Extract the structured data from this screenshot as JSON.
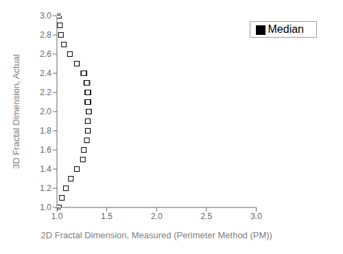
{
  "chart_data": {
    "type": "scatter",
    "x_label": "2D Fractal Dimension, Measured (Perimeter Method (PM))",
    "y_label": "3D Fractal Dimension, Actual",
    "x": [
      1.02,
      1.03,
      1.04,
      1.07,
      1.13,
      1.2,
      1.27,
      1.3,
      1.31,
      1.31,
      1.32,
      1.31,
      1.31,
      1.3,
      1.27,
      1.26,
      1.2,
      1.14,
      1.09,
      1.05,
      1.02
    ],
    "series": [
      {
        "name": "Median",
        "color": "#000000",
        "marker": "square",
        "values": [
          3.0,
          2.9,
          2.8,
          2.7,
          2.6,
          2.5,
          2.4,
          2.3,
          2.2,
          2.1,
          2.0,
          1.9,
          1.8,
          1.7,
          1.6,
          1.5,
          1.4,
          1.3,
          1.2,
          1.1,
          1.0
        ],
        "xerr_lo": [
          0.01,
          0.01,
          0.015,
          0.0,
          0.02,
          0.025,
          0.03,
          0.03,
          0.03,
          0.03,
          0.025,
          0.025,
          0.025,
          0.02,
          0.02,
          0.02,
          0.02,
          0.02,
          0.01,
          0.0,
          0.01
        ],
        "xerr_hi": [
          0.01,
          0.01,
          0.015,
          0.0,
          0.02,
          0.025,
          0.03,
          0.03,
          0.03,
          0.03,
          0.025,
          0.025,
          0.025,
          0.02,
          0.02,
          0.02,
          0.02,
          0.02,
          0.01,
          0.0,
          0.01
        ]
      }
    ],
    "xlim": [
      1.0,
      3.0
    ],
    "ylim": [
      1.0,
      3.0
    ],
    "xticks": [
      {
        "value": 1.0,
        "label": "1.0"
      },
      1.5,
      {
        "value": 2.0,
        "label": "2.0"
      },
      2.5,
      {
        "value": 3.0,
        "label": "3.0"
      }
    ],
    "yticks": [
      {
        "value": 1.0,
        "label": "1.0"
      },
      1.2,
      1.4,
      1.6,
      1.8,
      {
        "value": 2.0,
        "label": "2.0"
      },
      2.2,
      2.4,
      2.6,
      2.8,
      {
        "value": 3.0,
        "label": "3.0"
      }
    ],
    "legend": "upper right",
    "grid": false
  }
}
